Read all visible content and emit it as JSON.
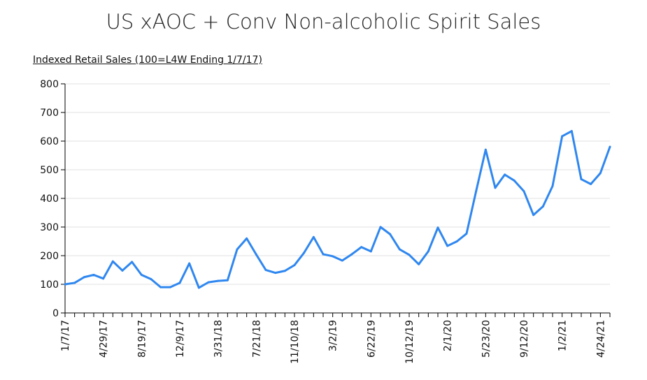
{
  "chart_data": {
    "type": "line",
    "title": "US xAOC + Conv Non-alcoholic Spirit Sales",
    "subtitle": "Indexed Retail Sales (100=L4W Ending 1/7/17)",
    "xlabel": "",
    "ylabel": "",
    "ylim": [
      0,
      800
    ],
    "yticks": [
      0,
      100,
      200,
      300,
      400,
      500,
      600,
      700,
      800
    ],
    "grid": true,
    "legend": "none",
    "x_tick_labels": [
      "1/7/17",
      "4/29/17",
      "8/19/17",
      "12/9/17",
      "3/31/18",
      "7/21/18",
      "11/10/18",
      "3/2/19",
      "6/22/19",
      "10/12/19",
      "2/1/20",
      "5/23/20",
      "9/12/20",
      "1/2/21",
      "4/24/21"
    ],
    "x_tick_period_index": [
      0,
      4,
      8,
      12,
      16,
      20,
      24,
      28,
      32,
      36,
      40,
      44,
      48,
      52,
      56
    ],
    "series": [
      {
        "color": "#2f87f0",
        "values": [
          100,
          105,
          125,
          133,
          120,
          180,
          148,
          178,
          133,
          118,
          90,
          90,
          105,
          173,
          88,
          107,
          112,
          114,
          222,
          260,
          204,
          150,
          140,
          147,
          167,
          210,
          265,
          205,
          198,
          183,
          205,
          230,
          215,
          300,
          275,
          222,
          203,
          170,
          215,
          298,
          234,
          250,
          277,
          425,
          570,
          437,
          483,
          462,
          425,
          342,
          372,
          443,
          617,
          635,
          467,
          450,
          488,
          580
        ]
      }
    ]
  }
}
